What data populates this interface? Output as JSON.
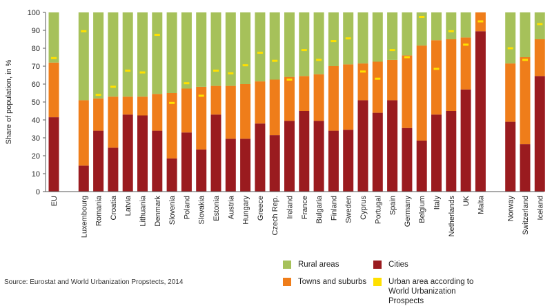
{
  "chart_data": {
    "type": "bar",
    "stacked": true,
    "ylabel": "Share of population, in %",
    "ylim": [
      0,
      100
    ],
    "yticks": [
      0,
      10,
      20,
      30,
      40,
      50,
      60,
      70,
      80,
      90,
      100
    ],
    "groups": [
      {
        "countries": [
          "EU"
        ]
      },
      {
        "countries": [
          "Luxembourg",
          "Romania",
          "Croatia",
          "Latvia",
          "Lithuania",
          "Denmark",
          "Slovenia",
          "Poland",
          "Slovakia",
          "Estonia",
          "Austria",
          "Hungary",
          "Greece",
          "Czech Rep.",
          "Ireland",
          "France",
          "Bulgaria",
          "Finland",
          "Sweden",
          "Cyprus",
          "Portugal",
          "Spain",
          "Germany",
          "Belgium",
          "Italy",
          "Netherlands",
          "UK",
          "Malta"
        ]
      },
      {
        "countries": [
          "Norway",
          "Switzerland",
          "Iceland"
        ]
      }
    ],
    "categories": [
      "EU",
      "Luxembourg",
      "Romania",
      "Croatia",
      "Latvia",
      "Lithuania",
      "Denmark",
      "Slovenia",
      "Poland",
      "Slovakia",
      "Estonia",
      "Austria",
      "Hungary",
      "Greece",
      "Czech Rep.",
      "Ireland",
      "France",
      "Bulgaria",
      "Finland",
      "Sweden",
      "Cyprus",
      "Portugal",
      "Spain",
      "Germany",
      "Belgium",
      "Italy",
      "Netherlands",
      "UK",
      "Malta",
      "Norway",
      "Switzerland",
      "Iceland"
    ],
    "series": [
      {
        "name": "Cities",
        "color": "#9a1b1f",
        "values": [
          41.5,
          14.5,
          34,
          24.5,
          43,
          42.5,
          34,
          18.5,
          33,
          23.5,
          43,
          29.5,
          29.5,
          38,
          31.5,
          39.5,
          45,
          39.5,
          34,
          34.5,
          51,
          44,
          51,
          35.5,
          28.5,
          43,
          45,
          57,
          89.5,
          39,
          26.5,
          64.5
        ]
      },
      {
        "name": "Towns and suburbs",
        "color": "#ef7d1a",
        "values": [
          30.5,
          36.5,
          18,
          28.5,
          10,
          10.5,
          20.5,
          36.5,
          24.5,
          35,
          16,
          29.5,
          30.5,
          23.5,
          31,
          24.5,
          19.5,
          26,
          36,
          36.5,
          20.5,
          28.5,
          22.5,
          40.5,
          53,
          41.5,
          40,
          29,
          10.5,
          32.5,
          48.5,
          20.5
        ]
      },
      {
        "name": "Rural areas",
        "color": "#a6c15a",
        "values": [
          28,
          49,
          48,
          47,
          47,
          47,
          45.5,
          45,
          42.5,
          41.5,
          41,
          41,
          40,
          38.5,
          37.5,
          36,
          35.5,
          34.5,
          30,
          29,
          28.5,
          27.5,
          26.5,
          24,
          18.5,
          15.5,
          15,
          14,
          0,
          28.5,
          25,
          15
        ]
      }
    ],
    "urban_marker": {
      "name": "Urban area according to World Urbanization Prospects",
      "color": "#ffe000",
      "values": [
        74.5,
        89.5,
        54,
        58.5,
        67.5,
        66.5,
        87.5,
        49.5,
        60.5,
        53.5,
        67.5,
        66,
        70.5,
        77.5,
        73,
        62.5,
        79,
        73.5,
        84,
        85.5,
        67,
        63,
        79,
        75,
        97.5,
        68.5,
        89.5,
        82,
        95,
        80,
        73.5,
        93.5
      ]
    }
  },
  "legend": {
    "rural": "Rural areas",
    "cities": "Cities",
    "towns": "Towns and suburbs",
    "urban": "Urban area according to World Urbanization Prospects",
    "colors": {
      "rural": "#a6c15a",
      "cities": "#9a1b1f",
      "towns": "#ef7d1a",
      "urban": "#ffe000"
    }
  },
  "source": "Source: Eurostat and World Urbanization Propstects, 2014"
}
